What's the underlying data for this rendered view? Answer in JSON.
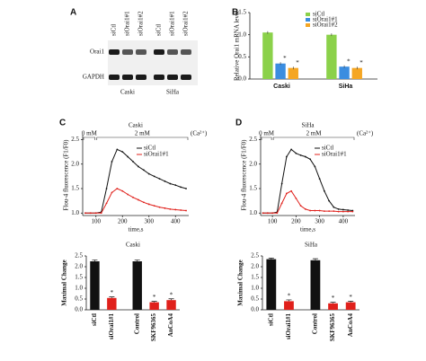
{
  "blot": {
    "panel": "A",
    "rows": [
      "Orai1",
      "GAPDH"
    ],
    "columns": [
      "siCtl",
      "siOrai1#1",
      "siOrai1#2",
      "siCtl",
      "siOrai1#1",
      "siOrai1#2"
    ],
    "groups": [
      "Caski",
      "SiHa"
    ]
  },
  "chart_data": [
    {
      "type": "grouped-bar",
      "panel": "B",
      "y_label": "Relative Orai1 mRNA level",
      "categories": [
        "Caski",
        "SiHa"
      ],
      "series": [
        {
          "name": "siCtl",
          "color": "#8bd14a",
          "values": [
            1.05,
            1.0
          ],
          "errors": [
            0.03,
            0.03
          ]
        },
        {
          "name": "siOrai1#1",
          "color": "#3b8de0",
          "values": [
            0.35,
            0.28
          ],
          "errors": [
            0.03,
            0.03
          ],
          "significance": [
            "*",
            "*"
          ]
        },
        {
          "name": "siOrai1#2",
          "color": "#f5a623",
          "values": [
            0.25,
            0.25
          ],
          "errors": [
            0.03,
            0.03
          ],
          "significance": [
            "*",
            "*"
          ]
        }
      ],
      "ylim": [
        0,
        1.5
      ],
      "yticks": [
        {
          "value": 0,
          "label": "0.0"
        },
        {
          "value": 0.5,
          "label": "0.5"
        },
        {
          "value": 1,
          "label": "1.0"
        },
        {
          "value": 1.5,
          "label": "1.5"
        }
      ]
    },
    {
      "type": "line",
      "panel": "C",
      "title": "Caski",
      "x_label": "time,s",
      "y_label": "Flou-4 fluorescence (F1/F0)",
      "phases": [
        {
          "label": "0 mM",
          "start": 50,
          "end": 100
        },
        {
          "label": "2 mM",
          "start": 100,
          "end": 450
        }
      ],
      "phase_unit": "(Ca²⁺)",
      "x": [
        60,
        80,
        100,
        120,
        140,
        160,
        180,
        200,
        220,
        240,
        260,
        280,
        300,
        320,
        340,
        360,
        380,
        400,
        420,
        440
      ],
      "series": [
        {
          "name": "siCtl",
          "color": "#111111",
          "values": [
            1.0,
            1.0,
            1.0,
            1.02,
            1.5,
            2.05,
            2.3,
            2.25,
            2.15,
            2.05,
            1.95,
            1.88,
            1.8,
            1.75,
            1.7,
            1.65,
            1.6,
            1.57,
            1.53,
            1.5
          ]
        },
        {
          "name": "siOrai1#1",
          "color": "#e0201b",
          "values": [
            1.0,
            1.0,
            1.0,
            1.0,
            1.2,
            1.42,
            1.5,
            1.45,
            1.38,
            1.32,
            1.27,
            1.22,
            1.18,
            1.15,
            1.12,
            1.1,
            1.08,
            1.07,
            1.06,
            1.05
          ]
        }
      ],
      "xlim": [
        50,
        450
      ],
      "xticks": [
        100,
        200,
        300,
        400
      ],
      "ylim": [
        0.95,
        2.6
      ],
      "yticks": [
        {
          "value": 1,
          "label": "1.0"
        },
        {
          "value": 1.5,
          "label": "1.5"
        },
        {
          "value": 2,
          "label": "2.0"
        },
        {
          "value": 2.5,
          "label": "2.5"
        }
      ]
    },
    {
      "type": "line",
      "panel": "D",
      "title": "SiHa",
      "x_label": "time,s",
      "y_label": "Flou-4 fluorescence (F1/F0)",
      "phases": [
        {
          "label": "0 mM",
          "start": 50,
          "end": 100
        },
        {
          "label": "2 mM",
          "start": 100,
          "end": 450
        }
      ],
      "phase_unit": "(Ca²⁺)",
      "x": [
        60,
        80,
        100,
        120,
        140,
        160,
        180,
        200,
        220,
        240,
        260,
        280,
        300,
        320,
        340,
        360,
        380,
        400,
        420,
        440
      ],
      "series": [
        {
          "name": "siCtl",
          "color": "#111111",
          "values": [
            1.0,
            1.0,
            1.0,
            1.02,
            1.6,
            2.15,
            2.3,
            2.22,
            2.18,
            2.15,
            2.1,
            1.95,
            1.7,
            1.45,
            1.25,
            1.12,
            1.08,
            1.07,
            1.06,
            1.05
          ]
        },
        {
          "name": "siOrai1#1",
          "color": "#e0201b",
          "values": [
            1.0,
            1.0,
            1.0,
            1.0,
            1.2,
            1.4,
            1.45,
            1.3,
            1.15,
            1.08,
            1.05,
            1.05,
            1.05,
            1.04,
            1.04,
            1.04,
            1.03,
            1.03,
            1.03,
            1.03
          ]
        }
      ],
      "xlim": [
        50,
        450
      ],
      "xticks": [
        100,
        200,
        300,
        400
      ],
      "ylim": [
        0.95,
        2.6
      ],
      "yticks": [
        {
          "value": 1,
          "label": "1.0"
        },
        {
          "value": 1.5,
          "label": "1.5"
        },
        {
          "value": 2,
          "label": "2.0"
        },
        {
          "value": 2.5,
          "label": "2.5"
        }
      ]
    },
    {
      "type": "bar",
      "title": "Caski",
      "y_label": "Maximal Change",
      "categories": [
        "siCtl",
        "siOrai1#1",
        "Control",
        "SKF96365",
        "AnCoA4"
      ],
      "values": [
        2.25,
        0.55,
        2.25,
        0.35,
        0.45
      ],
      "errors": [
        0.06,
        0.05,
        0.06,
        0.04,
        0.06
      ],
      "colors": [
        "#111111",
        "#e0201b",
        "#111111",
        "#e0201b",
        "#e0201b"
      ],
      "significance": [
        null,
        "*",
        null,
        "*",
        "*"
      ],
      "ylim": [
        0,
        2.5
      ],
      "yticks": [
        {
          "value": 0,
          "label": "0.0"
        },
        {
          "value": 0.5,
          "label": "0.5"
        },
        {
          "value": 1,
          "label": "1.0"
        },
        {
          "value": 1.5,
          "label": "1.5"
        },
        {
          "value": 2,
          "label": "2.0"
        },
        {
          "value": 2.5,
          "label": "2.5"
        }
      ]
    },
    {
      "type": "bar",
      "title": "SiHa",
      "y_label": "Maximal Change",
      "categories": [
        "siCtl",
        "siOrai1#1",
        "Control",
        "SKF96365",
        "AnCoA4"
      ],
      "values": [
        2.35,
        0.4,
        2.3,
        0.3,
        0.35
      ],
      "errors": [
        0.05,
        0.06,
        0.07,
        0.05,
        0.05
      ],
      "colors": [
        "#111111",
        "#e0201b",
        "#111111",
        "#e0201b",
        "#e0201b"
      ],
      "significance": [
        null,
        "*",
        null,
        "*",
        "*"
      ],
      "ylim": [
        0,
        2.5
      ],
      "yticks": [
        {
          "value": 0,
          "label": "0.0"
        },
        {
          "value": 0.5,
          "label": "0.5"
        },
        {
          "value": 1,
          "label": "1.0"
        },
        {
          "value": 1.5,
          "label": "1.5"
        },
        {
          "value": 2,
          "label": "2.0"
        },
        {
          "value": 2.5,
          "label": "2.5"
        }
      ]
    }
  ]
}
